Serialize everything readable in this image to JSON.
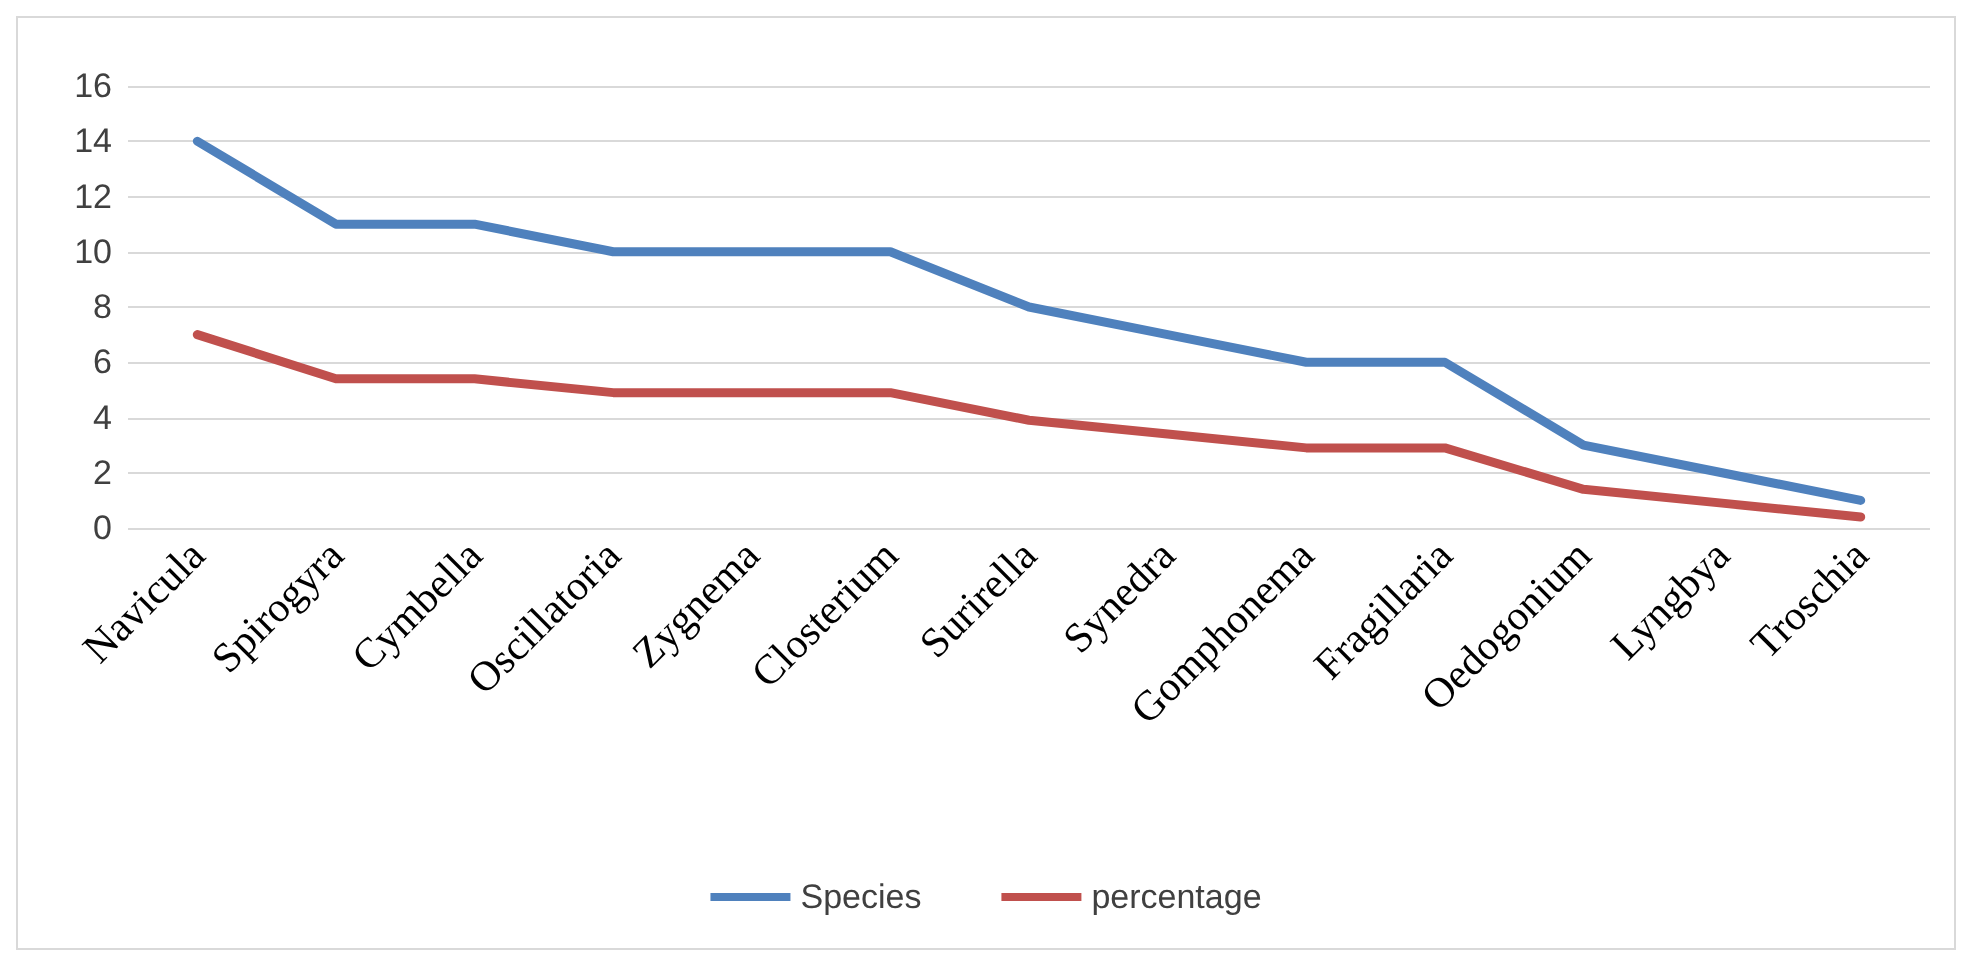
{
  "chart_data": {
    "type": "line",
    "categories": [
      "Navicula",
      "Spirogyra",
      "Cymbella",
      "Oscillatoria",
      "Zygnema",
      "Closterium",
      "Surirella",
      "Synedra",
      "Gomphonema",
      "Fragillaria",
      "Oedogonium",
      "Lyngbya",
      "Troschia"
    ],
    "series": [
      {
        "name": "Species",
        "color": "#4f81bd",
        "values": [
          14,
          11,
          11,
          10,
          10,
          10,
          8,
          7,
          6,
          6,
          3,
          2,
          1
        ]
      },
      {
        "name": "percentage",
        "color": "#c0504d",
        "values": [
          7,
          5.4,
          5.4,
          4.9,
          4.9,
          4.9,
          3.9,
          3.4,
          2.9,
          2.9,
          1.4,
          0.9,
          0.4
        ]
      }
    ],
    "ylim": [
      0,
      16
    ],
    "yticks": [
      0,
      2,
      4,
      6,
      8,
      10,
      12,
      14,
      16
    ],
    "grid": "y",
    "legend": "bottom",
    "marker": "none",
    "line_style": "solid"
  }
}
